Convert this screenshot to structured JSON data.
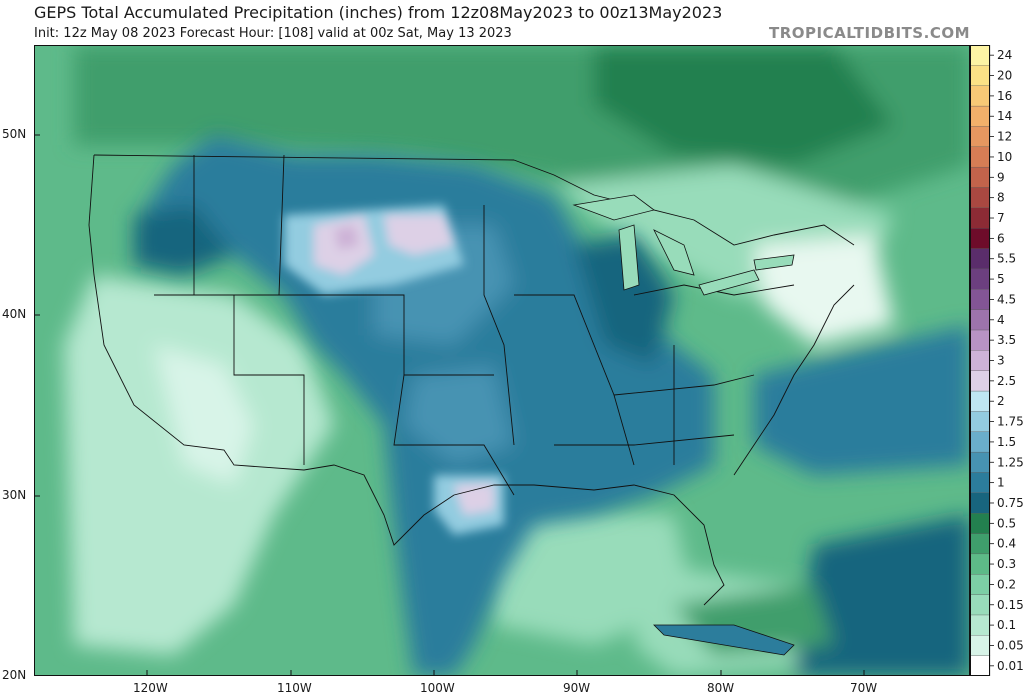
{
  "header": {
    "title": "GEPS Total Accumulated Precipitation (inches) from 12z08May2023 to 00z13May2023",
    "subtitle": "Init: 12z May 08 2023   Forecast Hour: [108]   valid at 00z Sat, May 13 2023",
    "site": "TROPICALTIDBITS.COM"
  },
  "map": {
    "lat_labels": [
      "50N",
      "40N",
      "30N",
      "20N"
    ],
    "lon_labels": [
      "120W",
      "110W",
      "100W",
      "90W",
      "80W",
      "70W"
    ],
    "ocean_color": "#7dd3b2",
    "land_dry_color": "#c6f0df"
  },
  "legend": {
    "levels": [
      "0.01",
      "0.05",
      "0.1",
      "0.15",
      "0.2",
      "0.3",
      "0.4",
      "0.5",
      "0.75",
      "1",
      "1.25",
      "1.5",
      "1.75",
      "2",
      "2.5",
      "3",
      "3.5",
      "4",
      "4.5",
      "5",
      "5.5",
      "6",
      "7",
      "8",
      "9",
      "10",
      "12",
      "14",
      "16",
      "20",
      "24"
    ],
    "colors": [
      "#ffffff",
      "#d8f4e8",
      "#b6e8d0",
      "#98dcba",
      "#7ccfa5",
      "#5dba88",
      "#3f9e6c",
      "#23804f",
      "#18657e",
      "#2c7d9c",
      "#4793b2",
      "#6aaecb",
      "#93cce0",
      "#bfe6f2",
      "#ddd0e6",
      "#cdb3d7",
      "#b793c4",
      "#9d73ac",
      "#835595",
      "#6c3f7f",
      "#5a2d6b",
      "#6e0c2a",
      "#8c2b35",
      "#a94841",
      "#c2634b",
      "#d67d55",
      "#e69760",
      "#f2b06a",
      "#f8c976",
      "#fbe186",
      "#fdf4a4"
    ]
  }
}
